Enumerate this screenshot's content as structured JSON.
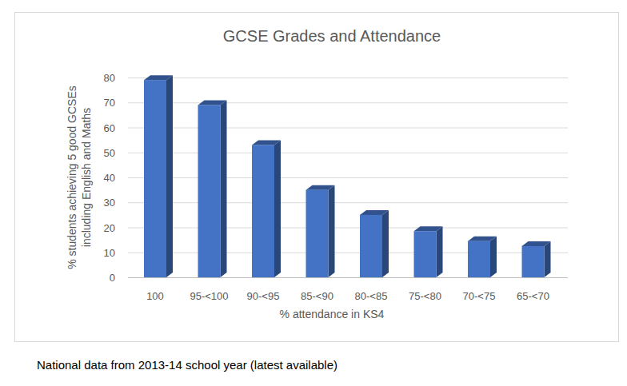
{
  "chart_data": {
    "type": "bar",
    "title": "GCSE Grades and Attendance",
    "x_label": "% attendance in KS4",
    "y_label": "% students achieving 5 good GCSEs including English and Maths",
    "caption": "National data from 2013-14 school year (latest available)",
    "categories": [
      "100",
      "95-<100",
      "90-<95",
      "85-<90",
      "80-<85",
      "75-<80",
      "70-<75",
      "65-<70"
    ],
    "values": [
      79,
      69,
      53,
      35,
      25,
      18.5,
      14.5,
      12.5
    ],
    "color": "#4472c4",
    "ylim": [
      0,
      80
    ],
    "yticks": [
      0,
      10,
      20,
      30,
      40,
      50,
      60,
      70,
      80
    ],
    "grid": true
  }
}
